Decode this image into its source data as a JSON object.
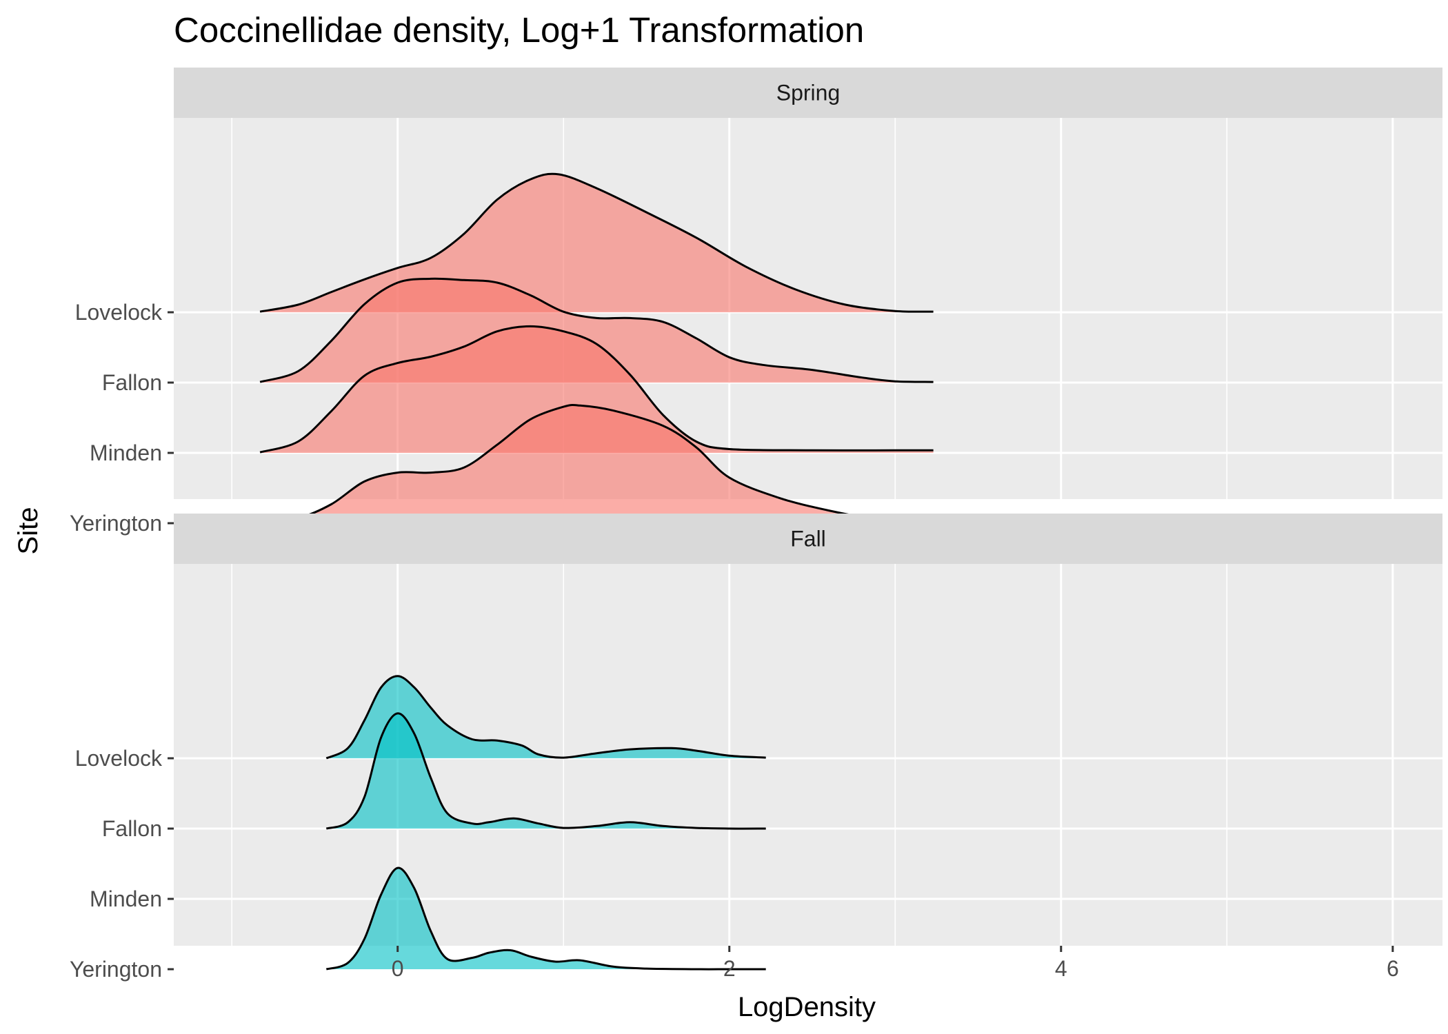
{
  "chart_data": {
    "type": "ridgeline",
    "title": "Coccinellidae density, Log+1 Transformation",
    "xlabel": "LogDensity",
    "ylabel": "Site",
    "xlim": [
      -1.35,
      6.3
    ],
    "x_ticks": [
      0,
      2,
      4,
      6
    ],
    "x_tick_labels": [
      "0",
      "2",
      "4",
      "6"
    ],
    "x_minor_grid": [
      -1,
      1,
      3,
      5
    ],
    "grid": true,
    "sites": [
      "Lovelock",
      "Fallon",
      "Minden",
      "Yerington"
    ],
    "ridge_scale": 1.8,
    "panels": [
      {
        "name": "Spring",
        "fill": "#F8766D",
        "series": [
          {
            "name": "Lovelock",
            "x": [
              -0.83,
              -0.6,
              -0.4,
              -0.2,
              0.0,
              0.2,
              0.4,
              0.6,
              0.8,
              0.97,
              1.2,
              1.5,
              1.8,
              2.1,
              2.4,
              2.7,
              3.0,
              3.23
            ],
            "y": [
              0.005,
              0.06,
              0.16,
              0.26,
              0.35,
              0.43,
              0.62,
              0.89,
              1.05,
              1.09,
              0.98,
              0.79,
              0.59,
              0.36,
              0.18,
              0.06,
              0.01,
              0.005
            ]
          },
          {
            "name": "Fallon",
            "x": [
              -0.83,
              -0.6,
              -0.4,
              -0.2,
              0.0,
              0.2,
              0.4,
              0.6,
              0.8,
              1.0,
              1.2,
              1.4,
              1.6,
              1.8,
              2.0,
              2.2,
              2.5,
              2.8,
              3.0,
              3.23
            ],
            "y": [
              0.005,
              0.09,
              0.33,
              0.62,
              0.79,
              0.82,
              0.81,
              0.79,
              0.69,
              0.56,
              0.51,
              0.51,
              0.48,
              0.35,
              0.2,
              0.14,
              0.1,
              0.04,
              0.01,
              0.005
            ]
          },
          {
            "name": "Minden",
            "x": [
              -0.83,
              -0.6,
              -0.4,
              -0.2,
              0.0,
              0.2,
              0.4,
              0.6,
              0.8,
              1.0,
              1.2,
              1.4,
              1.6,
              1.8,
              2.0,
              2.5,
              3.0,
              3.23
            ],
            "y": [
              0.005,
              0.09,
              0.33,
              0.61,
              0.71,
              0.76,
              0.84,
              0.96,
              1.0,
              0.96,
              0.86,
              0.62,
              0.3,
              0.09,
              0.03,
              0.02,
              0.02,
              0.02
            ]
          },
          {
            "name": "Yerington",
            "x": [
              -0.83,
              -0.6,
              -0.4,
              -0.2,
              0.0,
              0.2,
              0.4,
              0.6,
              0.8,
              1.0,
              1.1,
              1.3,
              1.6,
              1.8,
              2.0,
              2.3,
              2.6,
              2.9,
              3.23
            ],
            "y": [
              0.005,
              0.04,
              0.15,
              0.33,
              0.4,
              0.4,
              0.44,
              0.62,
              0.82,
              0.92,
              0.93,
              0.89,
              0.77,
              0.6,
              0.36,
              0.2,
              0.1,
              0.03,
              0.005
            ]
          }
        ]
      },
      {
        "name": "Fall",
        "fill": "#00BFC4",
        "series": [
          {
            "name": "Lovelock",
            "x": [
              -0.43,
              -0.3,
              -0.2,
              -0.1,
              0.0,
              0.1,
              0.2,
              0.3,
              0.45,
              0.6,
              0.75,
              0.85,
              1.0,
              1.2,
              1.4,
              1.65,
              1.8,
              2.0,
              2.22
            ],
            "y": [
              0.0,
              0.08,
              0.3,
              0.56,
              0.65,
              0.56,
              0.4,
              0.26,
              0.15,
              0.14,
              0.1,
              0.03,
              0.005,
              0.04,
              0.07,
              0.08,
              0.06,
              0.02,
              0.005
            ]
          },
          {
            "name": "Fallon",
            "x": [
              -0.43,
              -0.3,
              -0.2,
              -0.1,
              0.0,
              0.1,
              0.2,
              0.3,
              0.45,
              0.55,
              0.7,
              0.85,
              1.0,
              1.2,
              1.4,
              1.6,
              1.8,
              2.0,
              2.22
            ],
            "y": [
              0.0,
              0.05,
              0.25,
              0.72,
              0.91,
              0.75,
              0.4,
              0.12,
              0.04,
              0.05,
              0.08,
              0.04,
              0.005,
              0.02,
              0.05,
              0.02,
              0.005,
              0.0,
              0.0
            ]
          },
          {
            "name": "Minden",
            "x": [],
            "y": []
          },
          {
            "name": "Yerington",
            "x": [
              -0.43,
              -0.3,
              -0.2,
              -0.1,
              0.0,
              0.1,
              0.2,
              0.3,
              0.45,
              0.55,
              0.68,
              0.8,
              0.95,
              1.1,
              1.3,
              1.5,
              1.8,
              2.0,
              2.22
            ],
            "y": [
              0.0,
              0.05,
              0.24,
              0.59,
              0.8,
              0.64,
              0.3,
              0.08,
              0.09,
              0.13,
              0.15,
              0.1,
              0.06,
              0.07,
              0.02,
              0.005,
              0.0,
              0.0,
              0.0
            ]
          }
        ]
      }
    ]
  }
}
